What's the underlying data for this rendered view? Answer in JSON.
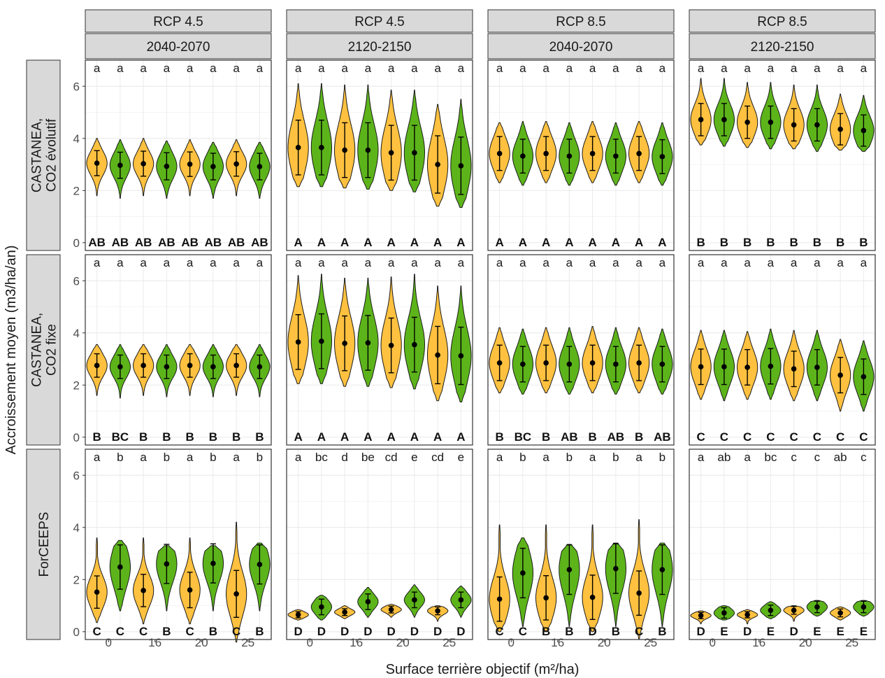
{
  "chart_data": {
    "type": "violin",
    "xlabel": "Surface terrière objectif (m²/ha)",
    "ylabel": "Accroissement moyen (m3/ha/an)",
    "ylim": [
      -0.3,
      7.0
    ],
    "y_ticks": [
      0,
      2,
      4,
      6
    ],
    "x_tick_labels": [
      "0",
      "16",
      "20",
      "25"
    ],
    "grid": "on",
    "colors": {
      "yellow": "#FFC13F",
      "green": "#5CB41A",
      "strip": "#D9D9D9",
      "panel_border": "#333333",
      "grid": "#EBEBEB"
    },
    "columns": [
      {
        "rcp": "RCP 4.5",
        "period": "2040-2070"
      },
      {
        "rcp": "RCP 4.5",
        "period": "2120-2150"
      },
      {
        "rcp": "RCP 8.5",
        "period": "2040-2070"
      },
      {
        "rcp": "RCP 8.5",
        "period": "2120-2150"
      }
    ],
    "rows": [
      {
        "label_lines": [
          "CASTANEA,",
          "CO2 évolutif"
        ]
      },
      {
        "label_lines": [
          "CASTANEA,",
          "CO2 fixe"
        ]
      },
      {
        "label_lines": [
          "ForCEEPS"
        ]
      }
    ],
    "violin_colors": [
      "yellow",
      "green",
      "yellow",
      "green",
      "yellow",
      "green",
      "yellow",
      "green"
    ],
    "panels": [
      [
        {
          "mean": [
            3.05,
            2.97,
            3.03,
            2.93,
            3.01,
            2.92,
            3.02,
            2.92
          ],
          "sd": [
            0.48,
            0.5,
            0.48,
            0.52,
            0.47,
            0.51,
            0.47,
            0.51
          ],
          "min": [
            1.8,
            1.7,
            1.8,
            1.7,
            1.8,
            1.7,
            1.8,
            1.7
          ],
          "max": [
            4.0,
            3.95,
            4.0,
            3.9,
            3.95,
            3.85,
            3.95,
            3.85
          ],
          "top": [
            "a",
            "a",
            "a",
            "a",
            "a",
            "a",
            "a",
            "a"
          ],
          "bottom": [
            "AB",
            "AB",
            "AB",
            "AB",
            "AB",
            "AB",
            "AB",
            "AB"
          ]
        },
        {
          "mean": [
            3.65,
            3.65,
            3.55,
            3.55,
            3.45,
            3.45,
            3.0,
            2.95
          ],
          "sd": [
            1.05,
            1.05,
            1.05,
            1.05,
            1.05,
            1.05,
            1.1,
            1.1
          ],
          "min": [
            2.15,
            2.15,
            2.1,
            2.05,
            2.0,
            1.95,
            1.4,
            1.35
          ],
          "max": [
            6.1,
            6.1,
            6.05,
            6.05,
            5.85,
            5.85,
            5.3,
            5.5
          ],
          "top": [
            "a",
            "a",
            "a",
            "a",
            "a",
            "a",
            "a",
            "a"
          ],
          "bottom": [
            "A",
            "A",
            "A",
            "A",
            "A",
            "A",
            "A",
            "A"
          ]
        },
        {
          "mean": [
            3.42,
            3.32,
            3.42,
            3.32,
            3.42,
            3.32,
            3.42,
            3.3
          ],
          "sd": [
            0.65,
            0.65,
            0.65,
            0.65,
            0.65,
            0.65,
            0.65,
            0.65
          ],
          "min": [
            2.3,
            2.2,
            2.3,
            2.2,
            2.3,
            2.2,
            2.3,
            2.2
          ],
          "max": [
            4.6,
            4.65,
            4.65,
            4.6,
            4.65,
            4.6,
            4.65,
            4.6
          ],
          "top": [
            "a",
            "a",
            "a",
            "a",
            "a",
            "a",
            "a",
            "a"
          ],
          "bottom": [
            "A",
            "A",
            "A",
            "A",
            "A",
            "A",
            "A",
            "A"
          ]
        },
        {
          "mean": [
            4.72,
            4.72,
            4.62,
            4.62,
            4.52,
            4.52,
            4.35,
            4.3
          ],
          "sd": [
            0.62,
            0.62,
            0.62,
            0.62,
            0.62,
            0.62,
            0.6,
            0.6
          ],
          "min": [
            3.75,
            3.7,
            3.65,
            3.6,
            3.6,
            3.5,
            3.55,
            3.5
          ],
          "max": [
            6.3,
            6.3,
            6.15,
            6.15,
            6.05,
            6.05,
            5.7,
            5.65
          ],
          "top": [
            "a",
            "a",
            "a",
            "a",
            "a",
            "a",
            "a",
            "a"
          ],
          "bottom": [
            "B",
            "B",
            "B",
            "B",
            "B",
            "B",
            "B",
            "B"
          ]
        }
      ],
      [
        {
          "mean": [
            2.75,
            2.7,
            2.75,
            2.7,
            2.75,
            2.7,
            2.75,
            2.7
          ],
          "sd": [
            0.45,
            0.45,
            0.45,
            0.45,
            0.45,
            0.45,
            0.45,
            0.45
          ],
          "min": [
            1.6,
            1.5,
            1.6,
            1.55,
            1.6,
            1.55,
            1.6,
            1.55
          ],
          "max": [
            3.55,
            3.55,
            3.55,
            3.55,
            3.55,
            3.55,
            3.55,
            3.55
          ],
          "top": [
            "a",
            "a",
            "a",
            "a",
            "a",
            "a",
            "a",
            "a"
          ],
          "bottom": [
            "B",
            "BC",
            "B",
            "B",
            "B",
            "B",
            "B",
            "B"
          ]
        },
        {
          "mean": [
            3.65,
            3.68,
            3.6,
            3.62,
            3.52,
            3.55,
            3.15,
            3.12
          ],
          "sd": [
            1.05,
            1.05,
            1.05,
            1.05,
            1.05,
            1.05,
            1.1,
            1.1
          ],
          "min": [
            2.05,
            2.05,
            1.95,
            1.95,
            1.9,
            1.85,
            1.4,
            1.35
          ],
          "max": [
            6.2,
            6.25,
            6.1,
            6.1,
            6.15,
            6.25,
            5.8,
            5.8
          ],
          "top": [
            "a",
            "a",
            "a",
            "a",
            "a",
            "a",
            "a",
            "a"
          ],
          "bottom": [
            "A",
            "A",
            "A",
            "A",
            "A",
            "A",
            "A",
            "A"
          ]
        },
        {
          "mean": [
            2.85,
            2.8,
            2.85,
            2.8,
            2.85,
            2.8,
            2.85,
            2.8
          ],
          "sd": [
            0.68,
            0.68,
            0.68,
            0.68,
            0.68,
            0.68,
            0.68,
            0.68
          ],
          "min": [
            1.7,
            1.65,
            1.7,
            1.65,
            1.7,
            1.65,
            1.7,
            1.65
          ],
          "max": [
            4.2,
            4.15,
            4.2,
            4.2,
            4.25,
            4.2,
            4.2,
            4.15
          ],
          "top": [
            "a",
            "a",
            "a",
            "a",
            "a",
            "a",
            "a",
            "a"
          ],
          "bottom": [
            "B",
            "BC",
            "B",
            "AB",
            "B",
            "AB",
            "B",
            "AB"
          ]
        },
        {
          "mean": [
            2.7,
            2.7,
            2.68,
            2.72,
            2.62,
            2.68,
            2.38,
            2.32
          ],
          "sd": [
            0.68,
            0.68,
            0.68,
            0.68,
            0.68,
            0.68,
            0.68,
            0.68
          ],
          "min": [
            1.45,
            1.4,
            1.45,
            1.45,
            1.4,
            1.4,
            1.0,
            1.0
          ],
          "max": [
            4.1,
            4.1,
            4.05,
            4.15,
            4.1,
            4.1,
            3.75,
            3.7
          ],
          "top": [
            "a",
            "a",
            "a",
            "a",
            "a",
            "a",
            "a",
            "a"
          ],
          "bottom": [
            "C",
            "C",
            "C",
            "C",
            "C",
            "C",
            "C",
            "C"
          ]
        }
      ],
      [
        {
          "mean": [
            1.52,
            2.48,
            1.58,
            2.6,
            1.6,
            2.62,
            1.45,
            2.58
          ],
          "sd": [
            0.62,
            0.85,
            0.62,
            0.75,
            0.68,
            0.75,
            0.9,
            0.75
          ],
          "min": [
            0.35,
            0.8,
            0.3,
            0.8,
            0.3,
            0.8,
            -0.4,
            0.8
          ],
          "max": [
            3.6,
            3.5,
            3.6,
            3.3,
            3.6,
            3.3,
            4.2,
            3.4
          ],
          "top": [
            "a",
            "b",
            "a",
            "b",
            "a",
            "b",
            "a",
            "b"
          ],
          "bottom": [
            "C",
            "C",
            "C",
            "B",
            "C",
            "B",
            "C",
            "B"
          ]
        },
        {
          "mean": [
            0.65,
            0.95,
            0.75,
            1.15,
            0.85,
            1.22,
            0.8,
            1.22
          ],
          "sd": [
            0.12,
            0.3,
            0.13,
            0.3,
            0.13,
            0.3,
            0.15,
            0.3
          ],
          "min": [
            0.45,
            0.45,
            0.5,
            0.55,
            0.55,
            0.55,
            0.4,
            0.55
          ],
          "max": [
            0.85,
            1.4,
            1.0,
            1.7,
            1.05,
            1.8,
            1.0,
            1.75
          ],
          "top": [
            "a",
            "bc",
            "d",
            "be",
            "cd",
            "e",
            "cd",
            "e"
          ],
          "bottom": [
            "D",
            "D",
            "D",
            "D",
            "D",
            "D",
            "D",
            "D"
          ]
        },
        {
          "mean": [
            1.25,
            2.25,
            1.3,
            2.38,
            1.32,
            2.42,
            1.48,
            2.38
          ],
          "sd": [
            0.85,
            0.95,
            0.85,
            0.95,
            0.85,
            0.95,
            0.85,
            0.95
          ],
          "min": [
            0.0,
            0.2,
            0.0,
            0.2,
            0.0,
            0.2,
            -0.3,
            0.2
          ],
          "max": [
            4.1,
            3.6,
            4.1,
            3.35,
            4.1,
            3.4,
            4.3,
            3.4
          ],
          "top": [
            "a",
            "b",
            "a",
            "b",
            "a",
            "b",
            "a",
            "b"
          ],
          "bottom": [
            "C",
            "C",
            "B",
            "B",
            "D",
            "B",
            "C",
            "B"
          ]
        },
        {
          "mean": [
            0.62,
            0.72,
            0.65,
            0.82,
            0.82,
            0.95,
            0.72,
            0.95
          ],
          "sd": [
            0.12,
            0.2,
            0.12,
            0.2,
            0.15,
            0.22,
            0.15,
            0.22
          ],
          "min": [
            0.3,
            0.45,
            0.3,
            0.5,
            0.4,
            0.6,
            0.45,
            0.6
          ],
          "max": [
            0.8,
            1.0,
            0.85,
            1.15,
            1.0,
            1.2,
            0.95,
            1.2
          ],
          "top": [
            "a",
            "ab",
            "a",
            "bc",
            "c",
            "c",
            "ab",
            "c"
          ],
          "bottom": [
            "D",
            "E",
            "D",
            "E",
            "D",
            "E",
            "E",
            "E"
          ]
        }
      ]
    ]
  }
}
